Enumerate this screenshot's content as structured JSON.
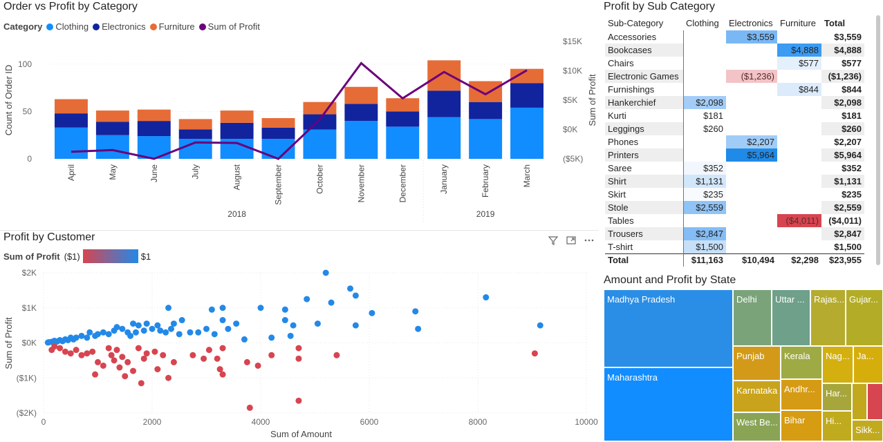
{
  "combo": {
    "title": "Order vs Profit by Category",
    "legend_title": "Category",
    "legend": [
      {
        "label": "Clothing",
        "color": "#118DFF"
      },
      {
        "label": "Electronics",
        "color": "#12239E"
      },
      {
        "label": "Furniture",
        "color": "#E66C37"
      },
      {
        "label": "Sum of Profit",
        "color": "#6B007B"
      }
    ],
    "chart_data": {
      "type": "bar",
      "stacked": true,
      "categories": [
        "April",
        "May",
        "June",
        "July",
        "August",
        "September",
        "October",
        "November",
        "December",
        "January",
        "February",
        "March"
      ],
      "year_groups": [
        {
          "label": "2018",
          "count": 9
        },
        {
          "label": "2019",
          "count": 3
        }
      ],
      "series": [
        {
          "name": "Clothing",
          "values": [
            33,
            25,
            24,
            21,
            21,
            21,
            31,
            40,
            34,
            44,
            42,
            54
          ]
        },
        {
          "name": "Electronics",
          "values": [
            15,
            14,
            16,
            10,
            17,
            12,
            16,
            18,
            16,
            28,
            18,
            26
          ]
        },
        {
          "name": "Furniture",
          "values": [
            15,
            12,
            12,
            11,
            13,
            10,
            13,
            18,
            14,
            32,
            22,
            15
          ]
        }
      ],
      "line": {
        "name": "Sum of Profit",
        "values": [
          -3800,
          -3500,
          -5000,
          -2200,
          -2300,
          -5000,
          1700,
          11300,
          5300,
          9800,
          6000,
          10100
        ]
      },
      "ylabel": "Count of Order ID",
      "y2label": "Sum of Profit",
      "y_ticks": [
        "0",
        "50",
        "100"
      ],
      "ylim": [
        0,
        113
      ],
      "y2_ticks": [
        "($5K)",
        "$0K",
        "$5K",
        "$10K",
        "$15K"
      ],
      "y2lim": [
        -5000,
        15000
      ]
    }
  },
  "scatter": {
    "title": "Profit by Customer",
    "legend_title": "Sum of Profit",
    "legend_min": "($1)",
    "legend_max": "$1",
    "chart_data": {
      "type": "scatter",
      "xlabel": "Sum of Amount",
      "ylabel": "Sum of Profit",
      "xlim": [
        0,
        10000
      ],
      "ylim": [
        -2000,
        2000
      ],
      "x_ticks": [
        "0",
        "2000",
        "4000",
        "6000",
        "8000",
        "10000"
      ],
      "y_ticks": [
        "$2K",
        "$1K",
        "$0K",
        "($1K)",
        "($2K)"
      ],
      "positive_color": "#2389e8",
      "negative_color": "#d64550",
      "points": [
        [
          5200,
          2000
        ],
        [
          5650,
          1550
        ],
        [
          5750,
          1350
        ],
        [
          4850,
          1250
        ],
        [
          5300,
          1150
        ],
        [
          3300,
          1000
        ],
        [
          3100,
          950
        ],
        [
          2300,
          1000
        ],
        [
          4000,
          1000
        ],
        [
          4450,
          950
        ],
        [
          6850,
          900
        ],
        [
          8150,
          1300
        ],
        [
          6050,
          850
        ],
        [
          9150,
          500
        ],
        [
          6900,
          400
        ],
        [
          5750,
          500
        ],
        [
          5050,
          550
        ],
        [
          4600,
          500
        ],
        [
          4450,
          650
        ],
        [
          3550,
          550
        ],
        [
          3300,
          650
        ],
        [
          3000,
          400
        ],
        [
          3400,
          400
        ],
        [
          2850,
          300
        ],
        [
          2700,
          300
        ],
        [
          2500,
          250
        ],
        [
          2350,
          400
        ],
        [
          2250,
          300
        ],
        [
          2100,
          500
        ],
        [
          2000,
          400
        ],
        [
          1900,
          550
        ],
        [
          1750,
          500
        ],
        [
          1700,
          300
        ],
        [
          1650,
          550
        ],
        [
          1550,
          300
        ],
        [
          1450,
          400
        ],
        [
          1300,
          350
        ],
        [
          1200,
          250
        ],
        [
          1100,
          300
        ],
        [
          1000,
          250
        ],
        [
          950,
          200
        ],
        [
          850,
          300
        ],
        [
          800,
          150
        ],
        [
          700,
          200
        ],
        [
          600,
          150
        ],
        [
          550,
          100
        ],
        [
          500,
          150
        ],
        [
          450,
          80
        ],
        [
          400,
          100
        ],
        [
          350,
          50
        ],
        [
          300,
          80
        ],
        [
          250,
          40
        ],
        [
          200,
          60
        ],
        [
          150,
          30
        ],
        [
          100,
          20
        ],
        [
          80,
          10
        ],
        [
          3150,
          250
        ],
        [
          2550,
          650
        ],
        [
          2150,
          350
        ],
        [
          1850,
          350
        ],
        [
          1350,
          450
        ],
        [
          4200,
          150
        ],
        [
          3700,
          100
        ],
        [
          4550,
          200
        ],
        [
          2400,
          550
        ],
        [
          1600,
          200
        ],
        [
          9050,
          -300
        ],
        [
          5400,
          -350
        ],
        [
          4700,
          -450
        ],
        [
          4700,
          -150
        ],
        [
          3750,
          -550
        ],
        [
          3950,
          -650
        ],
        [
          4200,
          -350
        ],
        [
          3300,
          -900
        ],
        [
          3250,
          -750
        ],
        [
          3200,
          -450
        ],
        [
          3050,
          -200
        ],
        [
          3300,
          -150
        ],
        [
          2950,
          -450
        ],
        [
          2750,
          -350
        ],
        [
          2400,
          -550
        ],
        [
          2200,
          -350
        ],
        [
          2100,
          -750
        ],
        [
          2050,
          -250
        ],
        [
          1900,
          -300
        ],
        [
          1850,
          -450
        ],
        [
          1750,
          -150
        ],
        [
          1650,
          -800
        ],
        [
          1550,
          -550
        ],
        [
          1500,
          -950
        ],
        [
          1450,
          -400
        ],
        [
          1400,
          -700
        ],
        [
          1350,
          -200
        ],
        [
          1250,
          -350
        ],
        [
          1200,
          -150
        ],
        [
          1100,
          -650
        ],
        [
          1000,
          -550
        ],
        [
          950,
          -900
        ],
        [
          900,
          -250
        ],
        [
          800,
          -300
        ],
        [
          700,
          -350
        ],
        [
          600,
          -200
        ],
        [
          500,
          -300
        ],
        [
          400,
          -250
        ],
        [
          300,
          -150
        ],
        [
          200,
          -100
        ],
        [
          150,
          -200
        ],
        [
          2300,
          -1000
        ],
        [
          1800,
          -1150
        ],
        [
          4700,
          -1650
        ],
        [
          3800,
          -1850
        ],
        [
          1300,
          -500
        ]
      ]
    }
  },
  "matrix": {
    "title": "Profit by Sub Category",
    "headers": [
      "Sub-Category",
      "Clothing",
      "Electronics",
      "Furniture",
      "Total"
    ],
    "rows": [
      {
        "name": "Accessories",
        "clothing": "",
        "electronics": "$3,559",
        "furniture": "",
        "total": "$3,559"
      },
      {
        "name": "Bookcases",
        "clothing": "",
        "electronics": "",
        "furniture": "$4,888",
        "total": "$4,888"
      },
      {
        "name": "Chairs",
        "clothing": "",
        "electronics": "",
        "furniture": "$577",
        "total": "$577"
      },
      {
        "name": "Electronic Games",
        "clothing": "",
        "electronics": "($1,236)",
        "furniture": "",
        "total": "($1,236)"
      },
      {
        "name": "Furnishings",
        "clothing": "",
        "electronics": "",
        "furniture": "$844",
        "total": "$844"
      },
      {
        "name": "Hankerchief",
        "clothing": "$2,098",
        "electronics": "",
        "furniture": "",
        "total": "$2,098"
      },
      {
        "name": "Kurti",
        "clothing": "$181",
        "electronics": "",
        "furniture": "",
        "total": "$181"
      },
      {
        "name": "Leggings",
        "clothing": "$260",
        "electronics": "",
        "furniture": "",
        "total": "$260"
      },
      {
        "name": "Phones",
        "clothing": "",
        "electronics": "$2,207",
        "furniture": "",
        "total": "$2,207"
      },
      {
        "name": "Printers",
        "clothing": "",
        "electronics": "$5,964",
        "furniture": "",
        "total": "$5,964"
      },
      {
        "name": "Saree",
        "clothing": "$352",
        "electronics": "",
        "furniture": "",
        "total": "$352"
      },
      {
        "name": "Shirt",
        "clothing": "$1,131",
        "electronics": "",
        "furniture": "",
        "total": "$1,131"
      },
      {
        "name": "Skirt",
        "clothing": "$235",
        "electronics": "",
        "furniture": "",
        "total": "$235"
      },
      {
        "name": "Stole",
        "clothing": "$2,559",
        "electronics": "",
        "furniture": "",
        "total": "$2,559"
      },
      {
        "name": "Tables",
        "clothing": "",
        "electronics": "",
        "furniture": "($4,011)",
        "total": "($4,011)"
      },
      {
        "name": "Trousers",
        "clothing": "$2,847",
        "electronics": "",
        "furniture": "",
        "total": "$2,847"
      },
      {
        "name": "T-shirt",
        "clothing": "$1,500",
        "electronics": "",
        "furniture": "",
        "total": "$1,500"
      }
    ],
    "totals": {
      "name": "Total",
      "clothing": "$11,163",
      "electronics": "$10,494",
      "furniture": "$2,298",
      "total": "$23,955"
    }
  },
  "treemap": {
    "title": "Amount and Profit by State",
    "cells": [
      {
        "label": "Madhya Pradesh",
        "color": "#2a8ee6"
      },
      {
        "label": "Maharashtra",
        "color": "#118DFF"
      },
      {
        "label": "Delhi",
        "color": "#7aa37a"
      },
      {
        "label": "Uttar ...",
        "color": "#6ea08a"
      },
      {
        "label": "Rajas...",
        "color": "#b5ab2e"
      },
      {
        "label": "Gujar...",
        "color": "#b3ac26"
      },
      {
        "label": "Punjab",
        "color": "#d39a19"
      },
      {
        "label": "Kerala",
        "color": "#9eaa44"
      },
      {
        "label": "Nag...",
        "color": "#d3b00f"
      },
      {
        "label": "Ja...",
        "color": "#d6ae0c"
      },
      {
        "label": "Karnataka",
        "color": "#c9a31c"
      },
      {
        "label": "Andhr...",
        "color": "#d69b15"
      },
      {
        "label": "Har...",
        "color": "#a7a63c"
      },
      {
        "label": "West Be...",
        "color": "#8aa456"
      },
      {
        "label": "Bihar",
        "color": "#d69c12"
      },
      {
        "label": "Hi...",
        "color": "#c0ab1e"
      },
      {
        "label": "Sikk...",
        "color": "#c2aa1e"
      },
      {
        "label": "",
        "color": "#c2a81d"
      },
      {
        "label": "",
        "color": "#d64550"
      }
    ]
  }
}
